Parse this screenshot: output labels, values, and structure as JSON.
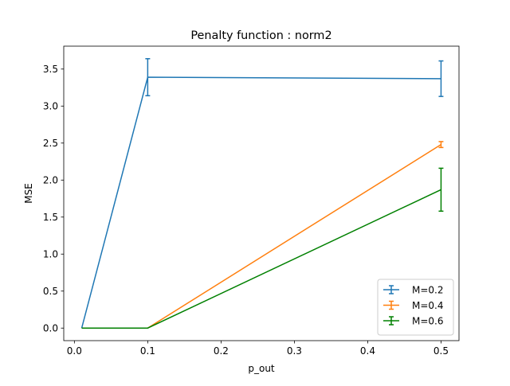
{
  "chart_data": {
    "type": "line",
    "title": "Penalty function : norm2",
    "xlabel": "p_out",
    "ylabel": "MSE",
    "x": [
      0.01,
      0.1,
      0.5
    ],
    "xlim": [
      -0.0145,
      0.5245
    ],
    "ylim": [
      -0.1695,
      3.8095
    ],
    "xticks": [
      0.0,
      0.1,
      0.2,
      0.3,
      0.4,
      0.5
    ],
    "xtick_labels": [
      "0.0",
      "0.1",
      "0.2",
      "0.3",
      "0.4",
      "0.5"
    ],
    "yticks": [
      0.0,
      0.5,
      1.0,
      1.5,
      2.0,
      2.5,
      3.0,
      3.5
    ],
    "ytick_labels": [
      "0.0",
      "0.5",
      "1.0",
      "1.5",
      "2.0",
      "2.5",
      "3.0",
      "3.5"
    ],
    "grid": false,
    "legend_position": "lower right",
    "series": [
      {
        "name": "M=0.2",
        "color": "#1f77b4",
        "values": [
          0.0,
          3.39,
          3.37
        ],
        "err": [
          0.0,
          0.25,
          0.24
        ]
      },
      {
        "name": "M=0.4",
        "color": "#ff7f0e",
        "values": [
          0.0,
          0.0,
          2.48
        ],
        "err": [
          0.0,
          0.0,
          0.04
        ]
      },
      {
        "name": "M=0.6",
        "color": "#008000",
        "values": [
          0.0,
          0.0,
          1.87
        ],
        "err": [
          0.0,
          0.0,
          0.29
        ]
      }
    ]
  }
}
